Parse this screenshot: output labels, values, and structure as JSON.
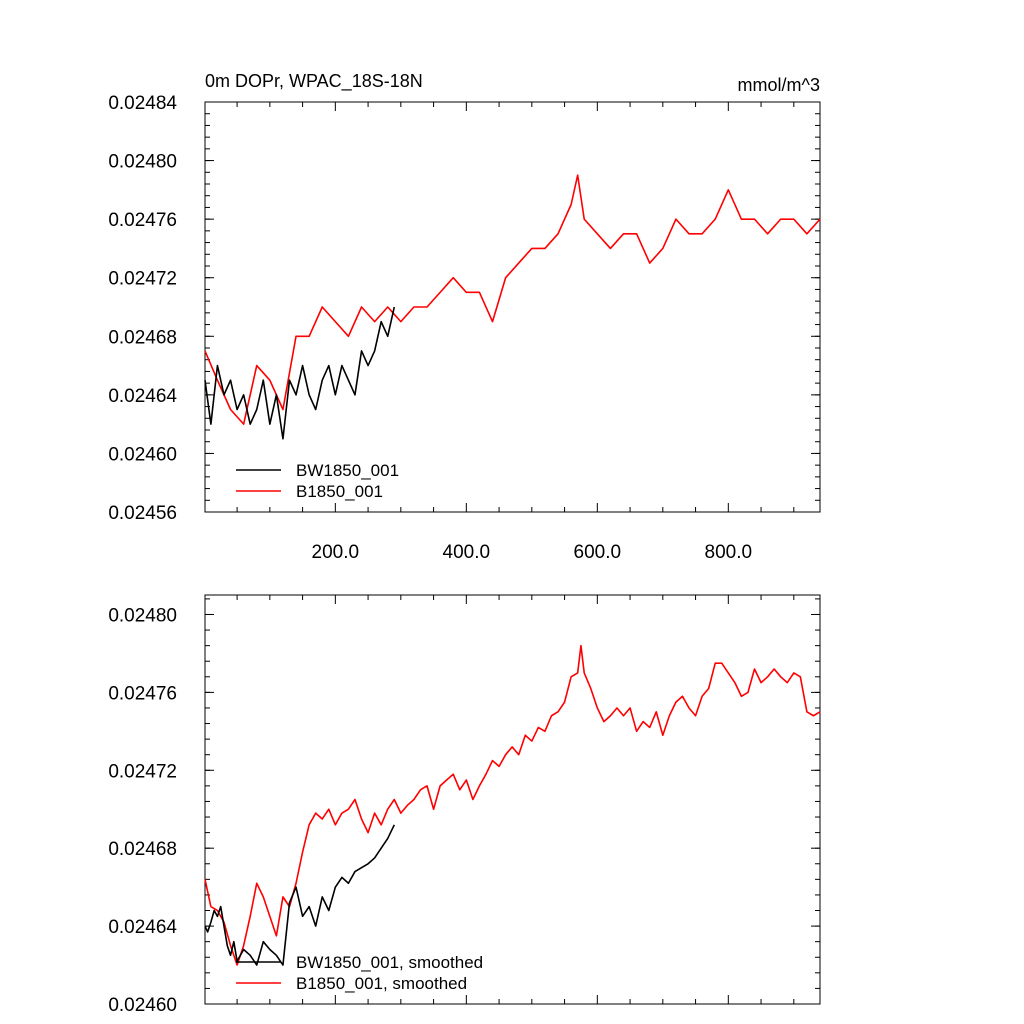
{
  "chart_data": [
    {
      "type": "line",
      "title": "0m DOPr, WPAC_18S-18N",
      "units": "mmol/m^3",
      "xlim": [
        1,
        940
      ],
      "ylim": [
        0.02456,
        0.02484
      ],
      "x_ticks": [
        200,
        400,
        600,
        800
      ],
      "x_tick_labels": [
        "200.0",
        "400.0",
        "600.0",
        "800.0"
      ],
      "y_ticks": [
        0.02456,
        0.0246,
        0.02464,
        0.02468,
        0.02472,
        0.02476,
        0.0248,
        0.02484
      ],
      "y_tick_labels": [
        "0.02456",
        "0.02460",
        "0.02464",
        "0.02468",
        "0.02472",
        "0.02476",
        "0.02480",
        "0.02484"
      ],
      "grid": false,
      "legend_position": "bottom-left",
      "series": [
        {
          "name": "BW1850_001",
          "color": "#000000",
          "x": [
            1,
            10,
            20,
            30,
            40,
            50,
            60,
            70,
            80,
            90,
            100,
            110,
            120,
            130,
            140,
            150,
            160,
            170,
            180,
            190,
            200,
            210,
            220,
            230,
            240,
            250,
            260,
            270,
            280,
            290
          ],
          "y": [
            0.02465,
            0.02462,
            0.02466,
            0.02464,
            0.02465,
            0.02463,
            0.02464,
            0.02462,
            0.02463,
            0.02465,
            0.02462,
            0.02464,
            0.02461,
            0.02465,
            0.02464,
            0.02466,
            0.02464,
            0.02463,
            0.02465,
            0.02466,
            0.02464,
            0.02466,
            0.02465,
            0.02464,
            0.02467,
            0.02466,
            0.02467,
            0.02469,
            0.02468,
            0.0247
          ]
        },
        {
          "name": "B1850_001",
          "color": "#ff0000",
          "x": [
            1,
            20,
            40,
            60,
            80,
            100,
            120,
            140,
            160,
            180,
            200,
            220,
            240,
            260,
            280,
            300,
            320,
            340,
            360,
            380,
            400,
            420,
            440,
            460,
            480,
            500,
            520,
            540,
            560,
            570,
            580,
            600,
            620,
            640,
            660,
            680,
            700,
            720,
            740,
            760,
            780,
            800,
            820,
            840,
            860,
            880,
            900,
            920,
            940
          ],
          "y": [
            0.02467,
            0.02465,
            0.02463,
            0.02462,
            0.02466,
            0.02465,
            0.02463,
            0.02468,
            0.02468,
            0.0247,
            0.02469,
            0.02468,
            0.0247,
            0.02469,
            0.0247,
            0.02469,
            0.0247,
            0.0247,
            0.02471,
            0.02472,
            0.02471,
            0.02471,
            0.02469,
            0.02472,
            0.02473,
            0.02474,
            0.02474,
            0.02475,
            0.02477,
            0.02479,
            0.02476,
            0.02475,
            0.02474,
            0.02475,
            0.02475,
            0.02473,
            0.02474,
            0.02476,
            0.02475,
            0.02475,
            0.02476,
            0.02478,
            0.02476,
            0.02476,
            0.02475,
            0.02476,
            0.02476,
            0.02475,
            0.02476
          ]
        }
      ]
    },
    {
      "type": "line",
      "xlim": [
        1,
        940
      ],
      "ylim": [
        0.0246,
        0.02481
      ],
      "x_ticks": [
        200,
        400,
        600,
        800
      ],
      "y_ticks": [
        0.0246,
        0.02464,
        0.02468,
        0.02472,
        0.02476,
        0.0248
      ],
      "y_tick_labels": [
        "0.02460",
        "0.02464",
        "0.02468",
        "0.02472",
        "0.02476",
        "0.02480"
      ],
      "grid": false,
      "legend_position": "bottom-left",
      "series": [
        {
          "name": "BW1850_001, smoothed",
          "color": "#000000",
          "x": [
            1,
            5,
            10,
            15,
            20,
            25,
            30,
            35,
            40,
            45,
            50,
            60,
            70,
            80,
            90,
            100,
            110,
            120,
            130,
            140,
            150,
            160,
            170,
            180,
            190,
            200,
            210,
            220,
            230,
            240,
            250,
            260,
            270,
            280,
            290
          ],
          "y": [
            0.02464,
            0.024637,
            0.024642,
            0.024648,
            0.024645,
            0.02465,
            0.02464,
            0.02463,
            0.024625,
            0.024632,
            0.024622,
            0.024628,
            0.024625,
            0.02462,
            0.024632,
            0.024628,
            0.024625,
            0.02462,
            0.024652,
            0.02466,
            0.024645,
            0.02465,
            0.02464,
            0.024655,
            0.024648,
            0.02466,
            0.024665,
            0.024662,
            0.024668,
            0.02467,
            0.024672,
            0.024675,
            0.02468,
            0.024685,
            0.024692
          ]
        },
        {
          "name": "B1850_001, smoothed",
          "color": "#ff0000",
          "x": [
            1,
            10,
            20,
            30,
            40,
            50,
            60,
            70,
            80,
            90,
            100,
            110,
            120,
            130,
            140,
            150,
            160,
            170,
            180,
            190,
            200,
            210,
            220,
            230,
            240,
            250,
            260,
            270,
            280,
            290,
            300,
            310,
            320,
            330,
            340,
            350,
            360,
            370,
            380,
            390,
            400,
            410,
            420,
            430,
            440,
            450,
            460,
            470,
            480,
            490,
            500,
            510,
            520,
            530,
            540,
            550,
            560,
            570,
            575,
            580,
            590,
            600,
            610,
            620,
            630,
            640,
            650,
            660,
            670,
            680,
            690,
            700,
            710,
            720,
            730,
            740,
            750,
            760,
            770,
            780,
            790,
            800,
            810,
            820,
            830,
            840,
            850,
            860,
            870,
            880,
            890,
            900,
            910,
            920,
            930,
            940
          ],
          "y": [
            0.024664,
            0.02465,
            0.024648,
            0.024642,
            0.02463,
            0.02462,
            0.02463,
            0.024645,
            0.024662,
            0.024655,
            0.024645,
            0.024635,
            0.024655,
            0.02465,
            0.024662,
            0.024678,
            0.024692,
            0.024698,
            0.024695,
            0.0247,
            0.024692,
            0.024698,
            0.0247,
            0.024705,
            0.024695,
            0.024688,
            0.024698,
            0.024692,
            0.0247,
            0.024705,
            0.024698,
            0.024702,
            0.024705,
            0.02471,
            0.024712,
            0.0247,
            0.024712,
            0.024715,
            0.024718,
            0.02471,
            0.024715,
            0.024705,
            0.024712,
            0.024718,
            0.024725,
            0.024722,
            0.024728,
            0.024732,
            0.024728,
            0.024738,
            0.024735,
            0.024742,
            0.02474,
            0.024748,
            0.02475,
            0.024755,
            0.024768,
            0.02477,
            0.024784,
            0.02477,
            0.024762,
            0.024752,
            0.024745,
            0.024748,
            0.024752,
            0.024748,
            0.024752,
            0.02474,
            0.024745,
            0.024742,
            0.02475,
            0.024738,
            0.024748,
            0.024755,
            0.024758,
            0.024752,
            0.024748,
            0.024758,
            0.024762,
            0.024775,
            0.024775,
            0.02477,
            0.024765,
            0.024758,
            0.02476,
            0.024772,
            0.024765,
            0.024768,
            0.024772,
            0.024768,
            0.024765,
            0.02477,
            0.024768,
            0.02475,
            0.024748,
            0.02475
          ]
        }
      ]
    }
  ]
}
